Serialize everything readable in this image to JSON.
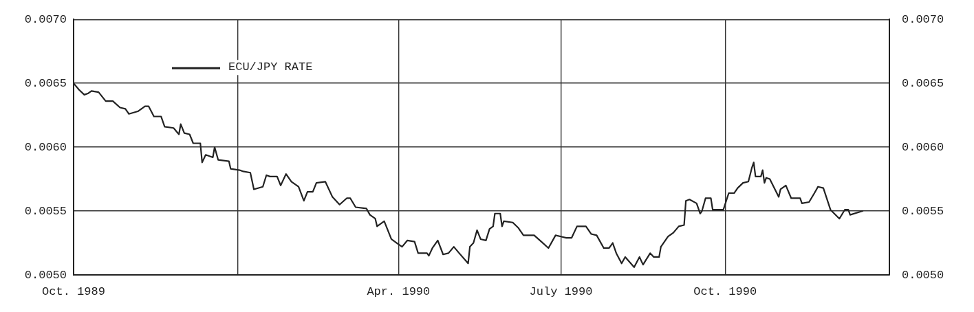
{
  "chart_data": {
    "type": "line",
    "xlim": [
      "1989-10-01",
      "1991-01-01"
    ],
    "xticks": [
      {
        "value": "1989-10-01",
        "label": "Oct. 1989"
      },
      {
        "value": "1990-01-01",
        "label": null
      },
      {
        "value": "1990-04-01",
        "label": "Apr. 1990"
      },
      {
        "value": "1990-07-01",
        "label": "July 1990"
      },
      {
        "value": "1990-10-01",
        "label": "Oct. 1990"
      },
      {
        "value": "1991-01-01",
        "label": null
      }
    ],
    "ylim": [
      0.005,
      0.007
    ],
    "yticks": [
      {
        "value": 0.005,
        "label": "0.0050"
      },
      {
        "value": 0.0055,
        "label": "0.0055"
      },
      {
        "value": 0.006,
        "label": "0.0060"
      },
      {
        "value": 0.0065,
        "label": "0.0065"
      },
      {
        "value": 0.007,
        "label": "0.0070"
      }
    ],
    "y2lim": [
      0.005,
      0.007
    ],
    "y2ticks": [
      {
        "value": 0.005,
        "label": "0.0050"
      },
      {
        "value": 0.0055,
        "label": "0.0055"
      },
      {
        "value": 0.006,
        "label": "0.0060"
      },
      {
        "value": 0.0065,
        "label": "0.0065"
      },
      {
        "value": 0.007,
        "label": "0.0070"
      }
    ],
    "grid": true,
    "legend": "top left",
    "marker": "none",
    "line_style": "solid",
    "series": [
      {
        "name": "ECU/JPY RATE",
        "color": "#222222",
        "x": [
          "1989-10-01",
          "1989-10-04",
          "1989-10-07",
          "1989-10-09",
          "1989-10-11",
          "1989-10-15",
          "1989-10-19",
          "1989-10-23",
          "1989-10-27",
          "1989-10-30",
          "1989-11-01",
          "1989-11-06",
          "1989-11-10",
          "1989-11-12",
          "1989-11-15",
          "1989-11-19",
          "1989-11-21",
          "1989-11-26",
          "1989-11-29",
          "1989-11-30",
          "1989-12-02",
          "1989-12-05",
          "1989-12-07",
          "1989-12-11",
          "1989-12-12",
          "1989-12-14",
          "1989-12-18",
          "1989-12-19",
          "1989-12-21",
          "1989-12-27",
          "1989-12-28",
          "1990-01-02",
          "1990-01-04",
          "1990-01-08",
          "1990-01-10",
          "1990-01-15",
          "1990-01-17",
          "1990-01-19",
          "1990-01-23",
          "1990-01-25",
          "1990-01-28",
          "1990-01-31",
          "1990-02-04",
          "1990-02-07",
          "1990-02-09",
          "1990-02-12",
          "1990-02-14",
          "1990-02-19",
          "1990-02-23",
          "1990-02-27",
          "1990-03-03",
          "1990-03-05",
          "1990-03-08",
          "1990-03-14",
          "1990-03-16",
          "1990-03-19",
          "1990-03-20",
          "1990-03-24",
          "1990-03-28",
          "1990-03-31",
          "1990-04-03",
          "1990-04-06",
          "1990-04-10",
          "1990-04-12",
          "1990-04-17",
          "1990-04-18",
          "1990-04-20",
          "1990-04-23",
          "1990-04-26",
          "1990-04-29",
          "1990-05-02",
          "1990-05-05",
          "1990-05-10",
          "1990-05-11",
          "1990-05-13",
          "1990-05-15",
          "1990-05-17",
          "1990-05-20",
          "1990-05-22",
          "1990-05-24",
          "1990-05-25",
          "1990-05-28",
          "1990-05-29",
          "1990-05-30",
          "1990-06-04",
          "1990-06-07",
          "1990-06-10",
          "1990-06-16",
          "1990-06-20",
          "1990-06-24",
          "1990-06-28",
          "1990-07-01",
          "1990-07-04",
          "1990-07-07",
          "1990-07-10",
          "1990-07-15",
          "1990-07-18",
          "1990-07-21",
          "1990-07-25",
          "1990-07-28",
          "1990-07-30",
          "1990-08-01",
          "1990-08-04",
          "1990-08-06",
          "1990-08-11",
          "1990-08-14",
          "1990-08-16",
          "1990-08-20",
          "1990-08-22",
          "1990-08-25",
          "1990-08-26",
          "1990-08-30",
          "1990-09-02",
          "1990-09-05",
          "1990-09-08",
          "1990-09-09",
          "1990-09-11",
          "1990-09-15",
          "1990-09-17",
          "1990-09-18",
          "1990-09-20",
          "1990-09-23",
          "1990-09-24",
          "1990-09-26",
          "1990-09-30",
          "1990-10-03",
          "1990-10-06",
          "1990-10-08",
          "1990-10-11",
          "1990-10-14",
          "1990-10-16",
          "1990-10-17",
          "1990-10-18",
          "1990-10-21",
          "1990-10-22",
          "1990-10-23",
          "1990-10-24",
          "1990-10-26",
          "1990-10-31",
          "1990-11-01",
          "1990-11-04",
          "1990-11-07",
          "1990-11-12",
          "1990-11-13",
          "1990-11-17",
          "1990-11-20",
          "1990-11-22",
          "1990-11-25",
          "1990-11-29",
          "1990-12-04",
          "1990-12-07",
          "1990-12-09",
          "1990-12-10",
          "1990-12-17"
        ],
        "values": [
          0.0065,
          0.00645,
          0.00641,
          0.00642,
          0.00644,
          0.00643,
          0.00636,
          0.00636,
          0.00631,
          0.0063,
          0.00626,
          0.00628,
          0.00632,
          0.00632,
          0.00624,
          0.00624,
          0.00616,
          0.00615,
          0.0061,
          0.00618,
          0.00611,
          0.0061,
          0.00603,
          0.00603,
          0.00588,
          0.00594,
          0.00592,
          0.006,
          0.0059,
          0.00589,
          0.00583,
          0.00582,
          0.00581,
          0.0058,
          0.00567,
          0.00569,
          0.00578,
          0.00577,
          0.00577,
          0.0057,
          0.00579,
          0.00573,
          0.00569,
          0.00558,
          0.00565,
          0.00565,
          0.00572,
          0.00573,
          0.00561,
          0.00555,
          0.0056,
          0.0056,
          0.00553,
          0.00552,
          0.00547,
          0.00544,
          0.00538,
          0.00542,
          0.00528,
          0.00525,
          0.00522,
          0.00527,
          0.00526,
          0.00517,
          0.00517,
          0.00515,
          0.00521,
          0.00527,
          0.00516,
          0.00517,
          0.00522,
          0.00517,
          0.00509,
          0.00522,
          0.00525,
          0.00535,
          0.00528,
          0.00527,
          0.00536,
          0.00538,
          0.00548,
          0.00548,
          0.00538,
          0.00542,
          0.00541,
          0.00537,
          0.00531,
          0.00531,
          0.00526,
          0.00521,
          0.00531,
          0.0053,
          0.00529,
          0.00529,
          0.00538,
          0.00538,
          0.00532,
          0.00531,
          0.00521,
          0.00521,
          0.00525,
          0.00517,
          0.00509,
          0.00514,
          0.00506,
          0.00514,
          0.00508,
          0.00517,
          0.00514,
          0.00514,
          0.00522,
          0.0053,
          0.00533,
          0.00538,
          0.00539,
          0.00558,
          0.00559,
          0.00556,
          0.00548,
          0.0055,
          0.0056,
          0.0056,
          0.00551,
          0.00551,
          0.00551,
          0.00564,
          0.00564,
          0.00568,
          0.00572,
          0.00573,
          0.00584,
          0.00588,
          0.00577,
          0.00577,
          0.00582,
          0.00572,
          0.00576,
          0.00575,
          0.00561,
          0.00567,
          0.0057,
          0.0056,
          0.0056,
          0.00556,
          0.00557,
          0.00564,
          0.00569,
          0.00568,
          0.00551,
          0.00544,
          0.00551,
          0.00551,
          0.00547,
          0.0055
        ]
      }
    ]
  }
}
